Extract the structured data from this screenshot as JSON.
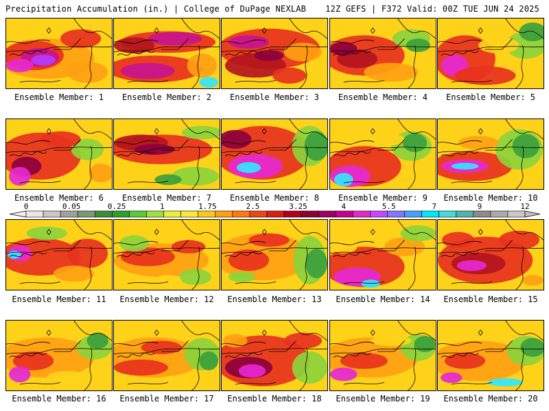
{
  "header": {
    "left": "Precipitation Accumulation (in.) | College of DuPage NEXLAB",
    "right": "12Z GEFS | F372 Valid: 00Z TUE JUN 24 2025"
  },
  "panels": [
    {
      "label": "Ensemble Member: 1"
    },
    {
      "label": "Ensemble Member: 2"
    },
    {
      "label": "Ensemble Member: 3"
    },
    {
      "label": "Ensemble Member: 4"
    },
    {
      "label": "Ensemble Member: 5"
    },
    {
      "label": "Ensemble Member: 6"
    },
    {
      "label": "Ensemble Member: 7"
    },
    {
      "label": "Ensemble Member: 8"
    },
    {
      "label": "Ensemble Member: 9"
    },
    {
      "label": "Ensemble Member: 10"
    },
    {
      "label": "Ensemble Member: 11"
    },
    {
      "label": "Ensemble Member: 12"
    },
    {
      "label": "Ensemble Member: 13"
    },
    {
      "label": "Ensemble Member: 14"
    },
    {
      "label": "Ensemble Member: 15"
    },
    {
      "label": "Ensemble Member: 16"
    },
    {
      "label": "Ensemble Member: 17"
    },
    {
      "label": "Ensemble Member: 18"
    },
    {
      "label": "Ensemble Member: 19"
    },
    {
      "label": "Ensemble Member: 20"
    }
  ],
  "colorbar": {
    "labels": [
      "0",
      "0.05",
      "0.25",
      "1",
      "1.75",
      "2.5",
      "3.25",
      "4",
      "5.5",
      "7",
      "9",
      "12"
    ],
    "colors": [
      "#e8e8e8",
      "#c8c8c8",
      "#a0a0a0",
      "#7a9a7a",
      "#3c8c3c",
      "#2ea02e",
      "#5cc83c",
      "#a0e03c",
      "#e8f03c",
      "#ffe63c",
      "#ffc81e",
      "#ffa014",
      "#ff7814",
      "#f04614",
      "#dc1e14",
      "#b4001e",
      "#8c0032",
      "#a00064",
      "#c8008c",
      "#e628c8",
      "#c846ff",
      "#8278ff",
      "#46a0ff",
      "#00e6ff",
      "#46dcd2",
      "#50b4aa",
      "#8c8c8c",
      "#aaaaaa",
      "#c8c8c8"
    ]
  }
}
